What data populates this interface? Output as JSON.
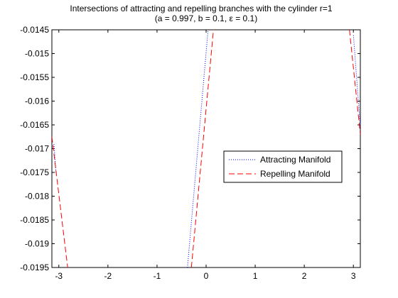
{
  "chart_data": {
    "type": "line",
    "title": [
      "Intersections of attracting and repelling branches with the cylinder r=1",
      "(a = 0.997, b = 0.1, ε = 0.1)"
    ],
    "xlabel": "",
    "ylabel": "",
    "xlim": [
      -3.14159,
      3.14159
    ],
    "ylim": [
      -0.0195,
      -0.0145
    ],
    "grid": false,
    "legend_position": "right",
    "x_ticks": [
      -3,
      -2,
      -1,
      0,
      1,
      2,
      3
    ],
    "x_tick_labels": [
      "-3",
      "-2",
      "-1",
      "0",
      "1",
      "2",
      "3"
    ],
    "y_ticks": [
      -0.0145,
      -0.015,
      -0.0155,
      -0.016,
      -0.0165,
      -0.017,
      -0.0175,
      -0.018,
      -0.0185,
      -0.019,
      -0.0195
    ],
    "y_tick_labels": [
      "-0.0145",
      "-0.015",
      "-0.0155",
      "-0.016",
      "-0.0165",
      "-0.017",
      "-0.0175",
      "-0.018",
      "-0.0185",
      "-0.019",
      "-0.0195"
    ],
    "series": [
      {
        "name": "Attracting Manifold",
        "color": "#0000ff",
        "style": "dotted",
        "segments": [
          [
            [
              -0.38,
              -0.0195
            ],
            [
              0.04,
              -0.0145
            ]
          ],
          [
            [
              -3.06,
              -0.0175
            ],
            [
              -3.1,
              -0.0169
            ]
          ],
          [
            [
              3.14159,
              -0.01655
            ],
            [
              3.0,
              -0.0146
            ]
          ]
        ]
      },
      {
        "name": "Repelling Manifold",
        "color": "#ff0000",
        "style": "dashed",
        "segments": [
          [
            [
              -3.14159,
              -0.01675
            ],
            [
              -2.82,
              -0.0195
            ]
          ],
          [
            [
              -0.3,
              -0.0195
            ],
            [
              0.15,
              -0.0145
            ]
          ],
          [
            [
              2.92,
              -0.0145
            ],
            [
              3.14159,
              -0.0167
            ]
          ]
        ]
      }
    ]
  }
}
